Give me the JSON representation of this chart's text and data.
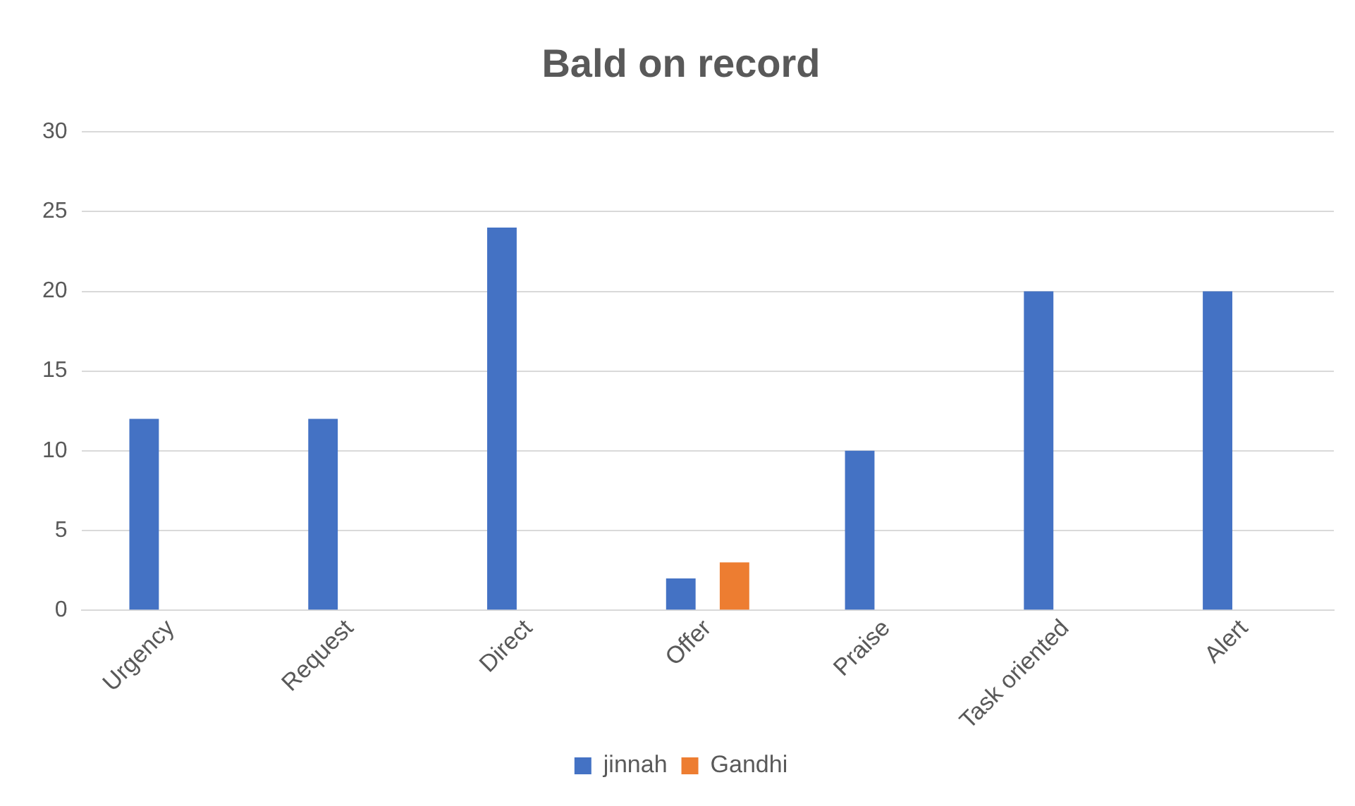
{
  "chart_data": {
    "type": "bar",
    "title": "Bald on record",
    "categories": [
      "Urgency",
      "Request",
      "Direct",
      "Offer",
      "Praise",
      "Task oriented",
      "Alert"
    ],
    "series": [
      {
        "name": "jinnah",
        "color": "#4472c4",
        "values": [
          12,
          12,
          24,
          2,
          10,
          20,
          20
        ]
      },
      {
        "name": "Gandhi",
        "color": "#ed7d31",
        "values": [
          null,
          null,
          null,
          3,
          null,
          null,
          null
        ]
      }
    ],
    "ylim": [
      0,
      30
    ],
    "yticks": [
      0,
      5,
      10,
      15,
      20,
      25,
      30
    ],
    "grid": "y",
    "legend": "bottom"
  }
}
